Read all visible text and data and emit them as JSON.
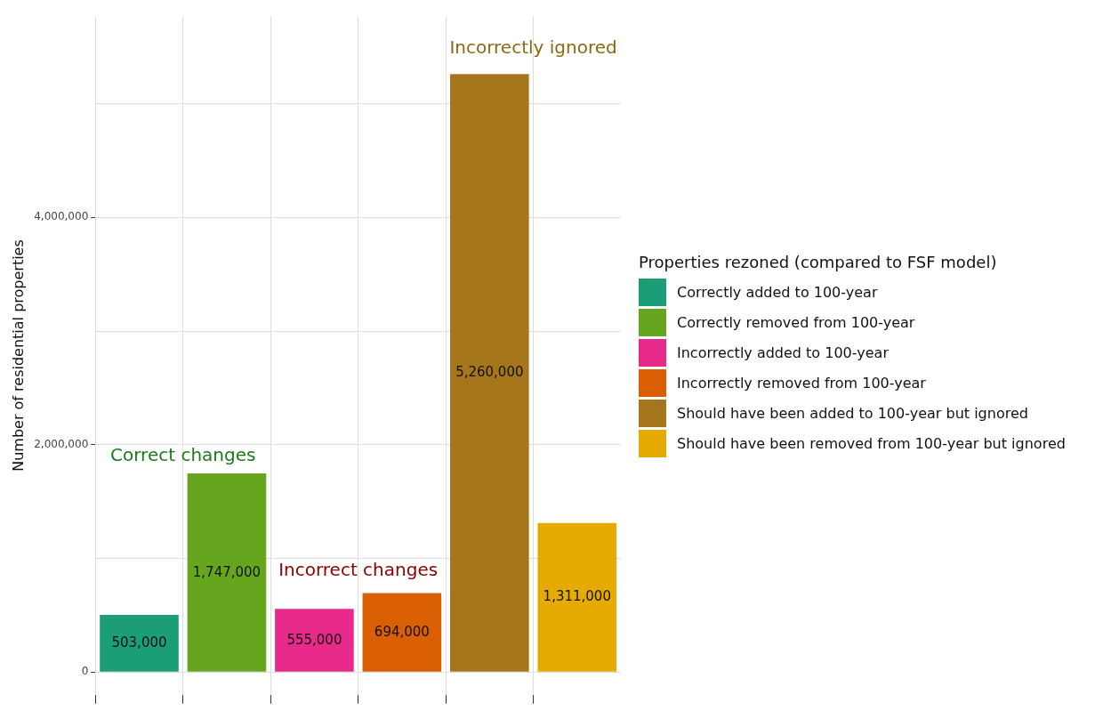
{
  "chart_data": {
    "type": "bar",
    "categories": [
      null,
      null,
      null,
      null,
      null,
      null
    ],
    "series": [
      {
        "name": "Correctly added to 100-year",
        "color": "#1b9e77",
        "values": [
          503000,
          null,
          null,
          null,
          null,
          null
        ],
        "value_labels": [
          "503,000",
          null,
          null,
          null,
          null,
          null
        ]
      },
      {
        "name": "Correctly removed from 100-year",
        "color": "#66a61e",
        "values": [
          null,
          1747000,
          null,
          null,
          null,
          null
        ],
        "value_labels": [
          null,
          "1,747,000",
          null,
          null,
          null,
          null
        ]
      },
      {
        "name": "Incorrectly added to 100-year",
        "color": "#e7298a",
        "values": [
          null,
          null,
          555000,
          null,
          null,
          null
        ],
        "value_labels": [
          null,
          null,
          "555,000",
          null,
          null,
          null
        ]
      },
      {
        "name": "Incorrectly removed from 100-year",
        "color": "#d95f02",
        "values": [
          null,
          null,
          null,
          694000,
          null,
          null
        ],
        "value_labels": [
          null,
          null,
          null,
          "694,000",
          null,
          null
        ]
      },
      {
        "name": "Should have been added to 100-year but ignored",
        "color": "#a6761d",
        "values": [
          null,
          null,
          null,
          null,
          5260000,
          null
        ],
        "value_labels": [
          null,
          null,
          null,
          null,
          "5,260,000",
          null
        ]
      },
      {
        "name": "Should have been removed from 100-year but ignored",
        "color": "#e6ab02",
        "values": [
          null,
          null,
          null,
          null,
          null,
          1311000
        ],
        "value_labels": [
          null,
          null,
          null,
          null,
          null,
          "1,311,000"
        ]
      }
    ],
    "ylabel": "Number of residential properties",
    "legend_title": "Properties rezoned (compared to FSF model)",
    "ylim": [
      -200000,
      5770000
    ],
    "yticks": [
      0,
      {
        "value": 1000000,
        "label": null
      },
      {
        "value": 2000000,
        "label": "2,000,000"
      },
      {
        "value": 3000000,
        "label": null
      },
      {
        "value": 4000000,
        "label": "4,000,000"
      },
      {
        "value": 5000000,
        "label": null
      }
    ],
    "annotations": [
      "Correct changes",
      "Incorrect changes",
      "Incorrectly ignored"
    ],
    "grid": true,
    "legend": "right",
    "tick_labels": "y"
  }
}
